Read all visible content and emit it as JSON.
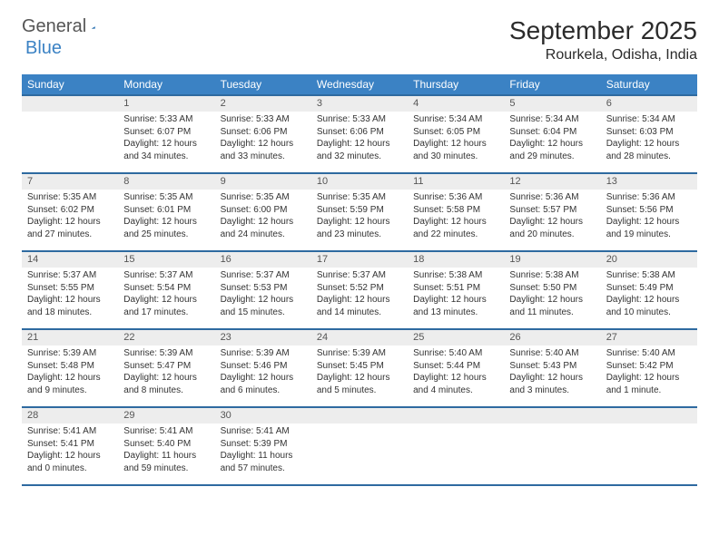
{
  "brand": {
    "part1": "General",
    "part2": "Blue"
  },
  "title": "September 2025",
  "location": "Rourkela, Odisha, India",
  "colors": {
    "header_bg": "#3b82c4",
    "header_border": "#2e6aa0",
    "daynum_bg": "#ededed",
    "text": "#333333"
  },
  "weekdays": [
    "Sunday",
    "Monday",
    "Tuesday",
    "Wednesday",
    "Thursday",
    "Friday",
    "Saturday"
  ],
  "weeks": [
    [
      null,
      {
        "n": "1",
        "sr": "5:33 AM",
        "ss": "6:07 PM",
        "dl": "12 hours and 34 minutes."
      },
      {
        "n": "2",
        "sr": "5:33 AM",
        "ss": "6:06 PM",
        "dl": "12 hours and 33 minutes."
      },
      {
        "n": "3",
        "sr": "5:33 AM",
        "ss": "6:06 PM",
        "dl": "12 hours and 32 minutes."
      },
      {
        "n": "4",
        "sr": "5:34 AM",
        "ss": "6:05 PM",
        "dl": "12 hours and 30 minutes."
      },
      {
        "n": "5",
        "sr": "5:34 AM",
        "ss": "6:04 PM",
        "dl": "12 hours and 29 minutes."
      },
      {
        "n": "6",
        "sr": "5:34 AM",
        "ss": "6:03 PM",
        "dl": "12 hours and 28 minutes."
      }
    ],
    [
      {
        "n": "7",
        "sr": "5:35 AM",
        "ss": "6:02 PM",
        "dl": "12 hours and 27 minutes."
      },
      {
        "n": "8",
        "sr": "5:35 AM",
        "ss": "6:01 PM",
        "dl": "12 hours and 25 minutes."
      },
      {
        "n": "9",
        "sr": "5:35 AM",
        "ss": "6:00 PM",
        "dl": "12 hours and 24 minutes."
      },
      {
        "n": "10",
        "sr": "5:35 AM",
        "ss": "5:59 PM",
        "dl": "12 hours and 23 minutes."
      },
      {
        "n": "11",
        "sr": "5:36 AM",
        "ss": "5:58 PM",
        "dl": "12 hours and 22 minutes."
      },
      {
        "n": "12",
        "sr": "5:36 AM",
        "ss": "5:57 PM",
        "dl": "12 hours and 20 minutes."
      },
      {
        "n": "13",
        "sr": "5:36 AM",
        "ss": "5:56 PM",
        "dl": "12 hours and 19 minutes."
      }
    ],
    [
      {
        "n": "14",
        "sr": "5:37 AM",
        "ss": "5:55 PM",
        "dl": "12 hours and 18 minutes."
      },
      {
        "n": "15",
        "sr": "5:37 AM",
        "ss": "5:54 PM",
        "dl": "12 hours and 17 minutes."
      },
      {
        "n": "16",
        "sr": "5:37 AM",
        "ss": "5:53 PM",
        "dl": "12 hours and 15 minutes."
      },
      {
        "n": "17",
        "sr": "5:37 AM",
        "ss": "5:52 PM",
        "dl": "12 hours and 14 minutes."
      },
      {
        "n": "18",
        "sr": "5:38 AM",
        "ss": "5:51 PM",
        "dl": "12 hours and 13 minutes."
      },
      {
        "n": "19",
        "sr": "5:38 AM",
        "ss": "5:50 PM",
        "dl": "12 hours and 11 minutes."
      },
      {
        "n": "20",
        "sr": "5:38 AM",
        "ss": "5:49 PM",
        "dl": "12 hours and 10 minutes."
      }
    ],
    [
      {
        "n": "21",
        "sr": "5:39 AM",
        "ss": "5:48 PM",
        "dl": "12 hours and 9 minutes."
      },
      {
        "n": "22",
        "sr": "5:39 AM",
        "ss": "5:47 PM",
        "dl": "12 hours and 8 minutes."
      },
      {
        "n": "23",
        "sr": "5:39 AM",
        "ss": "5:46 PM",
        "dl": "12 hours and 6 minutes."
      },
      {
        "n": "24",
        "sr": "5:39 AM",
        "ss": "5:45 PM",
        "dl": "12 hours and 5 minutes."
      },
      {
        "n": "25",
        "sr": "5:40 AM",
        "ss": "5:44 PM",
        "dl": "12 hours and 4 minutes."
      },
      {
        "n": "26",
        "sr": "5:40 AM",
        "ss": "5:43 PM",
        "dl": "12 hours and 3 minutes."
      },
      {
        "n": "27",
        "sr": "5:40 AM",
        "ss": "5:42 PM",
        "dl": "12 hours and 1 minute."
      }
    ],
    [
      {
        "n": "28",
        "sr": "5:41 AM",
        "ss": "5:41 PM",
        "dl": "12 hours and 0 minutes."
      },
      {
        "n": "29",
        "sr": "5:41 AM",
        "ss": "5:40 PM",
        "dl": "11 hours and 59 minutes."
      },
      {
        "n": "30",
        "sr": "5:41 AM",
        "ss": "5:39 PM",
        "dl": "11 hours and 57 minutes."
      },
      null,
      null,
      null,
      null
    ]
  ],
  "labels": {
    "sunrise": "Sunrise:",
    "sunset": "Sunset:",
    "daylight": "Daylight:"
  }
}
